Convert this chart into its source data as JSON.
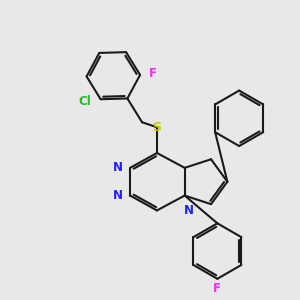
{
  "background_color": "#e8e8e8",
  "bond_color": "#1a1a1a",
  "lw": 1.5,
  "atom_colors": {
    "N": "#2020ff",
    "S": "#cccc00",
    "Cl": "#22bb22",
    "F": "#ff22ff"
  },
  "figsize": [
    3.0,
    3.0
  ],
  "dpi": 100
}
